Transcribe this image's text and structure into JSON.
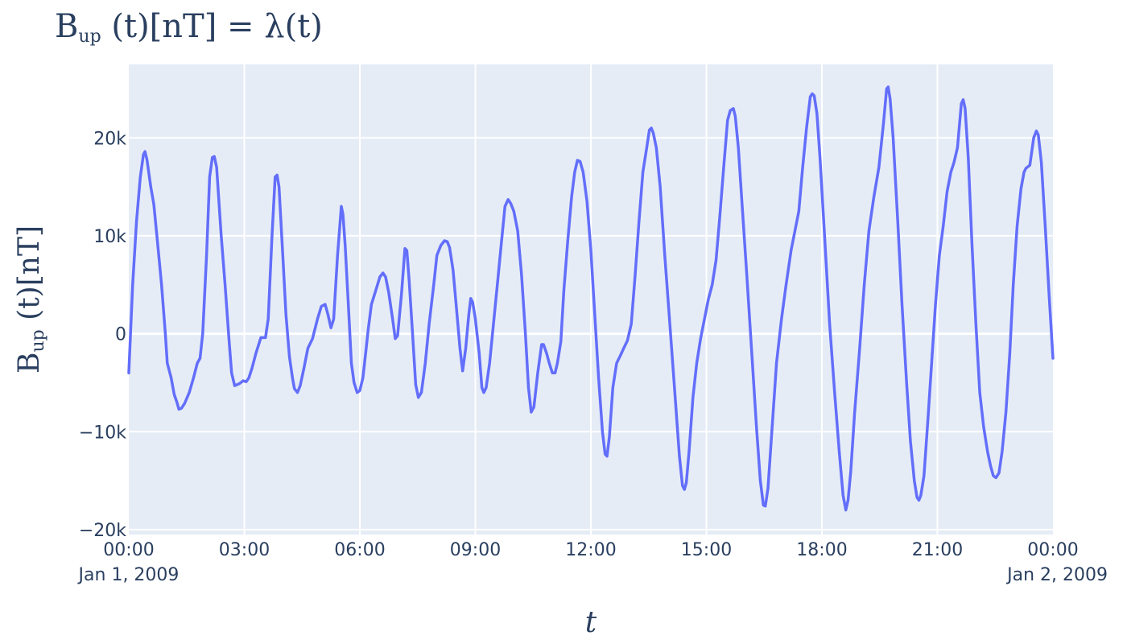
{
  "chart_data": {
    "type": "line",
    "title": {
      "main": "B",
      "sub": "up",
      "rest": " (t)[nT] = λ(t)"
    },
    "xlabel": "t",
    "ylabel": {
      "main": "B",
      "sub": "up",
      "rest": " (t)[nT]"
    },
    "ylim": [
      -20500,
      27500
    ],
    "xlim": [
      0,
      24
    ],
    "grid": true,
    "y_ticks": [
      {
        "v": -20000,
        "label": "−20k"
      },
      {
        "v": -10000,
        "label": "−10k"
      },
      {
        "v": 0,
        "label": "0"
      },
      {
        "v": 10000,
        "label": "10k"
      },
      {
        "v": 20000,
        "label": "20k"
      }
    ],
    "x_ticks": [
      {
        "v": 0,
        "label": "00:00",
        "date": "Jan 1, 2009"
      },
      {
        "v": 3,
        "label": "03:00"
      },
      {
        "v": 6,
        "label": "06:00"
      },
      {
        "v": 9,
        "label": "09:00"
      },
      {
        "v": 12,
        "label": "12:00"
      },
      {
        "v": 15,
        "label": "15:00"
      },
      {
        "v": 18,
        "label": "18:00"
      },
      {
        "v": 21,
        "label": "21:00"
      },
      {
        "v": 24,
        "label": "00:00",
        "date": "Jan 2, 2009"
      }
    ],
    "line_color": "#636efa",
    "plot_bg": "#e5ecf6",
    "series": [
      {
        "values": [
          [
            0.0,
            -4000
          ],
          [
            0.1,
            5000
          ],
          [
            0.2,
            11500
          ],
          [
            0.3,
            16000
          ],
          [
            0.38,
            18300
          ],
          [
            0.42,
            18600
          ],
          [
            0.47,
            17800
          ],
          [
            0.57,
            15000
          ],
          [
            0.65,
            13200
          ],
          [
            0.73,
            10000
          ],
          [
            0.85,
            5000
          ],
          [
            0.95,
            0
          ],
          [
            1.0,
            -3000
          ],
          [
            1.1,
            -4500
          ],
          [
            1.18,
            -6200
          ],
          [
            1.25,
            -7000
          ],
          [
            1.3,
            -7700
          ],
          [
            1.37,
            -7600
          ],
          [
            1.45,
            -7100
          ],
          [
            1.57,
            -6000
          ],
          [
            1.68,
            -4500
          ],
          [
            1.78,
            -3000
          ],
          [
            1.85,
            -2500
          ],
          [
            1.92,
            0
          ],
          [
            2.02,
            8000
          ],
          [
            2.1,
            16000
          ],
          [
            2.17,
            18000
          ],
          [
            2.22,
            18100
          ],
          [
            2.28,
            17000
          ],
          [
            2.4,
            10000
          ],
          [
            2.5,
            5000
          ],
          [
            2.6,
            -500
          ],
          [
            2.67,
            -4000
          ],
          [
            2.75,
            -5300
          ],
          [
            2.87,
            -5100
          ],
          [
            2.97,
            -4800
          ],
          [
            3.05,
            -4900
          ],
          [
            3.12,
            -4500
          ],
          [
            3.2,
            -3500
          ],
          [
            3.3,
            -2000
          ],
          [
            3.43,
            -400
          ],
          [
            3.55,
            -400
          ],
          [
            3.62,
            1500
          ],
          [
            3.72,
            10000
          ],
          [
            3.8,
            16000
          ],
          [
            3.85,
            16200
          ],
          [
            3.9,
            15000
          ],
          [
            4.0,
            8000
          ],
          [
            4.08,
            2000
          ],
          [
            4.17,
            -2300
          ],
          [
            4.25,
            -4500
          ],
          [
            4.3,
            -5600
          ],
          [
            4.38,
            -6000
          ],
          [
            4.45,
            -5300
          ],
          [
            4.55,
            -3500
          ],
          [
            4.65,
            -1500
          ],
          [
            4.77,
            -500
          ],
          [
            4.9,
            1500
          ],
          [
            5.0,
            2800
          ],
          [
            5.1,
            3000
          ],
          [
            5.17,
            2000
          ],
          [
            5.25,
            600
          ],
          [
            5.32,
            1500
          ],
          [
            5.42,
            8000
          ],
          [
            5.52,
            13000
          ],
          [
            5.56,
            12200
          ],
          [
            5.62,
            9000
          ],
          [
            5.7,
            3000
          ],
          [
            5.78,
            -3000
          ],
          [
            5.85,
            -5000
          ],
          [
            5.93,
            -6000
          ],
          [
            6.0,
            -5800
          ],
          [
            6.08,
            -4500
          ],
          [
            6.15,
            -2000
          ],
          [
            6.22,
            500
          ],
          [
            6.3,
            3000
          ],
          [
            6.42,
            4500
          ],
          [
            6.52,
            5800
          ],
          [
            6.6,
            6200
          ],
          [
            6.67,
            5800
          ],
          [
            6.75,
            4200
          ],
          [
            6.85,
            1500
          ],
          [
            6.92,
            -500
          ],
          [
            6.98,
            -200
          ],
          [
            7.08,
            4000
          ],
          [
            7.17,
            8700
          ],
          [
            7.22,
            8500
          ],
          [
            7.28,
            5500
          ],
          [
            7.37,
            0
          ],
          [
            7.45,
            -5200
          ],
          [
            7.52,
            -6500
          ],
          [
            7.6,
            -6000
          ],
          [
            7.7,
            -3000
          ],
          [
            7.8,
            1000
          ],
          [
            7.92,
            5000
          ],
          [
            8.0,
            8000
          ],
          [
            8.1,
            9000
          ],
          [
            8.2,
            9500
          ],
          [
            8.27,
            9400
          ],
          [
            8.33,
            8800
          ],
          [
            8.42,
            6500
          ],
          [
            8.5,
            3000
          ],
          [
            8.6,
            -1500
          ],
          [
            8.67,
            -3800
          ],
          [
            8.75,
            -1500
          ],
          [
            8.83,
            2000
          ],
          [
            8.88,
            3600
          ],
          [
            8.93,
            3200
          ],
          [
            9.0,
            1500
          ],
          [
            9.1,
            -2000
          ],
          [
            9.17,
            -5500
          ],
          [
            9.22,
            -6000
          ],
          [
            9.28,
            -5500
          ],
          [
            9.37,
            -3000
          ],
          [
            9.47,
            1000
          ],
          [
            9.57,
            5000
          ],
          [
            9.67,
            9000
          ],
          [
            9.77,
            13000
          ],
          [
            9.85,
            13700
          ],
          [
            9.92,
            13300
          ],
          [
            10.0,
            12500
          ],
          [
            10.1,
            10500
          ],
          [
            10.2,
            6000
          ],
          [
            10.3,
            0
          ],
          [
            10.38,
            -5500
          ],
          [
            10.45,
            -8000
          ],
          [
            10.52,
            -7500
          ],
          [
            10.62,
            -4000
          ],
          [
            10.72,
            -1100
          ],
          [
            10.77,
            -1100
          ],
          [
            10.85,
            -2000
          ],
          [
            10.92,
            -3000
          ],
          [
            11.0,
            -4000
          ],
          [
            11.07,
            -4000
          ],
          [
            11.13,
            -3000
          ],
          [
            11.22,
            -800
          ],
          [
            11.3,
            4500
          ],
          [
            11.4,
            9500
          ],
          [
            11.5,
            14000
          ],
          [
            11.58,
            16500
          ],
          [
            11.65,
            17700
          ],
          [
            11.72,
            17600
          ],
          [
            11.8,
            16500
          ],
          [
            11.9,
            13500
          ],
          [
            12.0,
            8500
          ],
          [
            12.1,
            2000
          ],
          [
            12.2,
            -4500
          ],
          [
            12.3,
            -10000
          ],
          [
            12.37,
            -12300
          ],
          [
            12.42,
            -12500
          ],
          [
            12.48,
            -10500
          ],
          [
            12.57,
            -5500
          ],
          [
            12.67,
            -3000
          ],
          [
            12.77,
            -2200
          ],
          [
            12.85,
            -1500
          ],
          [
            12.95,
            -700
          ],
          [
            13.05,
            1000
          ],
          [
            13.15,
            6000
          ],
          [
            13.25,
            11500
          ],
          [
            13.35,
            16500
          ],
          [
            13.45,
            19000
          ],
          [
            13.52,
            20800
          ],
          [
            13.57,
            21000
          ],
          [
            13.62,
            20500
          ],
          [
            13.7,
            19000
          ],
          [
            13.8,
            15000
          ],
          [
            13.92,
            8000
          ],
          [
            14.05,
            1000
          ],
          [
            14.18,
            -6000
          ],
          [
            14.3,
            -12500
          ],
          [
            14.38,
            -15500
          ],
          [
            14.43,
            -15900
          ],
          [
            14.48,
            -15200
          ],
          [
            14.55,
            -12000
          ],
          [
            14.65,
            -6500
          ],
          [
            14.75,
            -3000
          ],
          [
            14.85,
            -500
          ],
          [
            14.95,
            1500
          ],
          [
            15.05,
            3500
          ],
          [
            15.15,
            5000
          ],
          [
            15.25,
            7500
          ],
          [
            15.35,
            12000
          ],
          [
            15.45,
            17000
          ],
          [
            15.55,
            21800
          ],
          [
            15.62,
            22800
          ],
          [
            15.7,
            23000
          ],
          [
            15.75,
            22200
          ],
          [
            15.83,
            19000
          ],
          [
            15.93,
            13000
          ],
          [
            16.05,
            6000
          ],
          [
            16.18,
            -2000
          ],
          [
            16.3,
            -9500
          ],
          [
            16.4,
            -15000
          ],
          [
            16.48,
            -17500
          ],
          [
            16.53,
            -17600
          ],
          [
            16.6,
            -15800
          ],
          [
            16.7,
            -10000
          ],
          [
            16.82,
            -3000
          ],
          [
            16.95,
            1500
          ],
          [
            17.07,
            5000
          ],
          [
            17.2,
            8500
          ],
          [
            17.3,
            10500
          ],
          [
            17.4,
            12500
          ],
          [
            17.5,
            17000
          ],
          [
            17.6,
            21000
          ],
          [
            17.7,
            24200
          ],
          [
            17.75,
            24500
          ],
          [
            17.8,
            24300
          ],
          [
            17.87,
            22500
          ],
          [
            17.95,
            18000
          ],
          [
            18.07,
            10000
          ],
          [
            18.2,
            1000
          ],
          [
            18.33,
            -6000
          ],
          [
            18.45,
            -12000
          ],
          [
            18.55,
            -16500
          ],
          [
            18.62,
            -18000
          ],
          [
            18.68,
            -17000
          ],
          [
            18.75,
            -14000
          ],
          [
            18.85,
            -8000
          ],
          [
            18.98,
            -1500
          ],
          [
            19.1,
            5000
          ],
          [
            19.22,
            10500
          ],
          [
            19.35,
            14000
          ],
          [
            19.48,
            17000
          ],
          [
            19.6,
            21500
          ],
          [
            19.68,
            25000
          ],
          [
            19.72,
            25200
          ],
          [
            19.77,
            24000
          ],
          [
            19.85,
            20000
          ],
          [
            19.97,
            11500
          ],
          [
            20.08,
            3000
          ],
          [
            20.2,
            -5000
          ],
          [
            20.3,
            -11000
          ],
          [
            20.4,
            -15000
          ],
          [
            20.47,
            -16700
          ],
          [
            20.52,
            -17000
          ],
          [
            20.57,
            -16500
          ],
          [
            20.65,
            -14500
          ],
          [
            20.75,
            -9000
          ],
          [
            20.85,
            -3000
          ],
          [
            20.95,
            3000
          ],
          [
            21.05,
            8000
          ],
          [
            21.15,
            11000
          ],
          [
            21.25,
            14500
          ],
          [
            21.35,
            16500
          ],
          [
            21.43,
            17500
          ],
          [
            21.52,
            19000
          ],
          [
            21.62,
            23500
          ],
          [
            21.67,
            23900
          ],
          [
            21.72,
            23000
          ],
          [
            21.8,
            18000
          ],
          [
            21.9,
            9000
          ],
          [
            22.0,
            1000
          ],
          [
            22.1,
            -6000
          ],
          [
            22.2,
            -9500
          ],
          [
            22.3,
            -12000
          ],
          [
            22.38,
            -13500
          ],
          [
            22.45,
            -14500
          ],
          [
            22.52,
            -14700
          ],
          [
            22.6,
            -14200
          ],
          [
            22.68,
            -12000
          ],
          [
            22.78,
            -8000
          ],
          [
            22.88,
            -2000
          ],
          [
            22.97,
            5000
          ],
          [
            23.07,
            11000
          ],
          [
            23.17,
            14800
          ],
          [
            23.25,
            16500
          ],
          [
            23.3,
            16900
          ],
          [
            23.4,
            17200
          ],
          [
            23.5,
            20000
          ],
          [
            23.57,
            20700
          ],
          [
            23.62,
            20300
          ],
          [
            23.7,
            17500
          ],
          [
            23.8,
            11000
          ],
          [
            23.9,
            4000
          ],
          [
            24.0,
            -2500
          ]
        ]
      }
    ]
  }
}
